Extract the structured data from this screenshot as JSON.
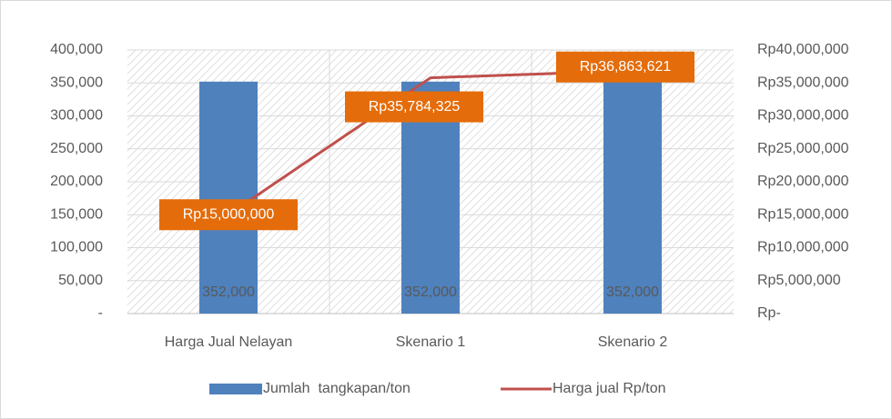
{
  "chart_data": {
    "type": "bar",
    "categories": [
      "Harga Jual Nelayan",
      "Skenario 1",
      "Skenario 2"
    ],
    "series": [
      {
        "name": "Jumlah  tangkapan/ton",
        "type": "bar",
        "color": "#4f81bd",
        "values": [
          352000,
          352000,
          352000
        ],
        "value_labels": [
          "352,000",
          "352,000",
          "352,000"
        ]
      },
      {
        "name": "Harga jual Rp/ton",
        "type": "line",
        "axis": "y2",
        "color": "#c0504d",
        "values": [
          15000000,
          35784325,
          36863621
        ],
        "value_labels": [
          "Rp15,000,000",
          "Rp35,784,325",
          "Rp36,863,621"
        ],
        "label_color": "#e46c0a"
      }
    ],
    "ylim": [
      0,
      400000
    ],
    "yticks": [
      {
        "value": 0,
        "label": "-"
      },
      {
        "value": 50000,
        "label": "50,000"
      },
      {
        "value": 100000,
        "label": "100,000"
      },
      {
        "value": 150000,
        "label": "150,000"
      },
      {
        "value": 200000,
        "label": "200,000"
      },
      {
        "value": 250000,
        "label": "250,000"
      },
      {
        "value": 300000,
        "label": "300,000"
      },
      {
        "value": 350000,
        "label": "350,000"
      },
      {
        "value": 400000,
        "label": "400,000"
      }
    ],
    "y2lim": [
      0,
      40000000
    ],
    "y2ticks": [
      {
        "value": 0,
        "label": "Rp-"
      },
      {
        "value": 5000000,
        "label": "Rp5,000,000"
      },
      {
        "value": 10000000,
        "label": "Rp10,000,000"
      },
      {
        "value": 15000000,
        "label": "Rp15,000,000"
      },
      {
        "value": 20000000,
        "label": "Rp20,000,000"
      },
      {
        "value": 25000000,
        "label": "Rp25,000,000"
      },
      {
        "value": 30000000,
        "label": "Rp30,000,000"
      },
      {
        "value": 35000000,
        "label": "Rp35,000,000"
      },
      {
        "value": 40000000,
        "label": "Rp40,000,000"
      }
    ],
    "grid": true,
    "legend": "bottom"
  }
}
